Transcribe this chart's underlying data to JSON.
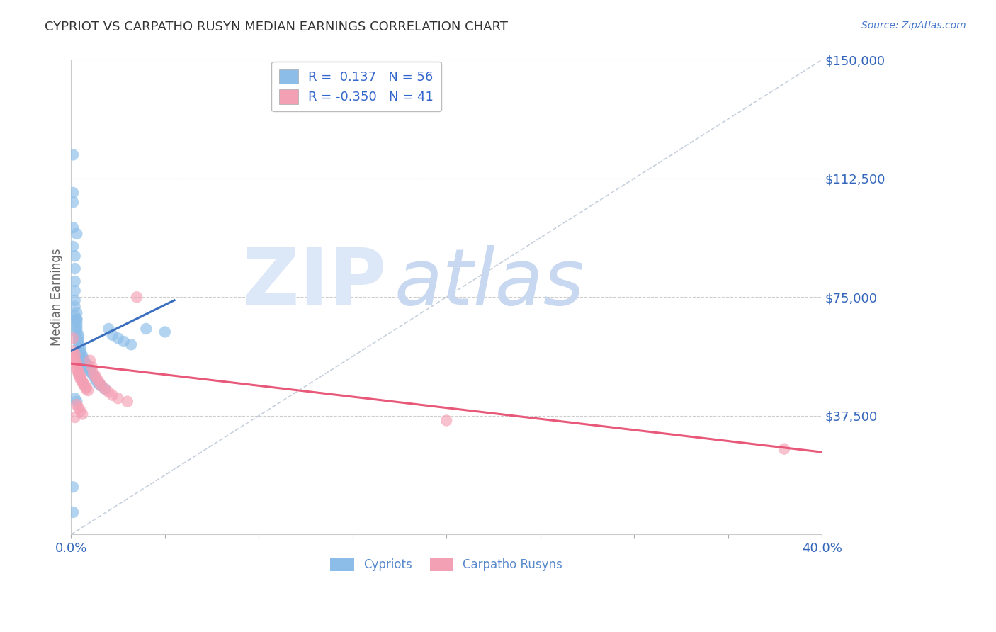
{
  "title": "CYPRIOT VS CARPATHO RUSYN MEDIAN EARNINGS CORRELATION CHART",
  "source_text": "Source: ZipAtlas.com",
  "ylabel": "Median Earnings",
  "xlim": [
    0.0,
    0.4
  ],
  "ylim": [
    0,
    150000
  ],
  "yticks": [
    0,
    37500,
    75000,
    112500,
    150000
  ],
  "ytick_labels": [
    "",
    "$37,500",
    "$75,000",
    "$112,500",
    "$150,000"
  ],
  "xticks": [
    0.0,
    0.05,
    0.1,
    0.15,
    0.2,
    0.25,
    0.3,
    0.35,
    0.4
  ],
  "xtick_labels": [
    "0.0%",
    "",
    "",
    "",
    "",
    "",
    "",
    "",
    "40.0%"
  ],
  "r_cypriot": 0.137,
  "n_cypriot": 56,
  "r_carpatho": -0.35,
  "n_carpatho": 41,
  "cypriot_color": "#8bbde8",
  "carpatho_color": "#f4a0b4",
  "trend_cypriot_color": "#3a6fbf",
  "trend_carpatho_color": "#e85878",
  "diagonal_color": "#b8c4d4",
  "watermark_zip_color": "#dce8f8",
  "watermark_atlas_color": "#c8d8f0",
  "title_color": "#333333",
  "axis_label_color": "#666666",
  "tick_label_color": "#3366bb",
  "grid_color": "#c8c8c8",
  "cypriot_x": [
    0.001,
    0.001,
    0.001,
    0.001,
    0.002,
    0.002,
    0.002,
    0.002,
    0.002,
    0.002,
    0.003,
    0.003,
    0.003,
    0.003,
    0.003,
    0.003,
    0.004,
    0.004,
    0.004,
    0.004,
    0.005,
    0.005,
    0.005,
    0.006,
    0.006,
    0.006,
    0.007,
    0.007,
    0.008,
    0.008,
    0.009,
    0.009,
    0.01,
    0.01,
    0.011,
    0.012,
    0.013,
    0.014,
    0.015,
    0.016,
    0.018,
    0.02,
    0.022,
    0.025,
    0.028,
    0.032,
    0.001,
    0.002,
    0.003,
    0.001,
    0.04,
    0.002,
    0.003,
    0.05,
    0.003,
    0.001
  ],
  "cypriot_y": [
    120000,
    108000,
    97000,
    91000,
    88000,
    84000,
    80000,
    77000,
    74000,
    72000,
    70000,
    68000,
    67000,
    66000,
    65000,
    64000,
    63000,
    62000,
    61000,
    60000,
    59000,
    58000,
    57000,
    56500,
    56000,
    55500,
    55000,
    54500,
    54000,
    53500,
    53000,
    52500,
    52000,
    51500,
    51000,
    50000,
    49000,
    48000,
    47500,
    47000,
    46000,
    65000,
    63000,
    62000,
    61000,
    60000,
    15000,
    43000,
    42000,
    7000,
    65000,
    69000,
    68000,
    64000,
    95000,
    105000
  ],
  "carpatho_x": [
    0.001,
    0.001,
    0.002,
    0.002,
    0.002,
    0.003,
    0.003,
    0.003,
    0.004,
    0.004,
    0.004,
    0.005,
    0.005,
    0.005,
    0.006,
    0.006,
    0.007,
    0.007,
    0.008,
    0.008,
    0.009,
    0.01,
    0.011,
    0.012,
    0.013,
    0.014,
    0.015,
    0.016,
    0.018,
    0.02,
    0.022,
    0.025,
    0.03,
    0.035,
    0.003,
    0.004,
    0.005,
    0.006,
    0.002,
    0.38,
    0.2
  ],
  "carpatho_y": [
    62000,
    58000,
    57000,
    56000,
    55000,
    54000,
    53000,
    52000,
    51500,
    51000,
    50500,
    50000,
    49500,
    49000,
    48500,
    48000,
    47500,
    47000,
    46500,
    46000,
    45500,
    55000,
    53000,
    51000,
    50000,
    49000,
    48000,
    47000,
    46000,
    45000,
    44000,
    43000,
    42000,
    75000,
    41000,
    40000,
    39000,
    38000,
    37000,
    27000,
    36000
  ],
  "trend_cypriot_x0": 0.0,
  "trend_cypriot_x1": 0.055,
  "trend_cypriot_y0": 58000,
  "trend_cypriot_y1": 74000,
  "trend_carpatho_x0": 0.0,
  "trend_carpatho_x1": 0.4,
  "trend_carpatho_y0": 54000,
  "trend_carpatho_y1": 26000
}
